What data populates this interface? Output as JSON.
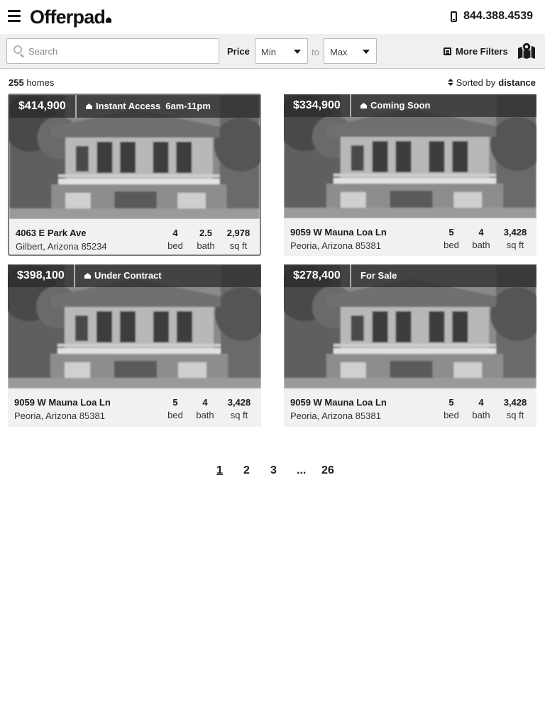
{
  "header": {
    "logo": "Offerpad",
    "phone": "844.388.4539"
  },
  "filters": {
    "search_placeholder": "Search",
    "price_label": "Price",
    "min_value": "Min",
    "to_label": "to",
    "max_value": "Max",
    "more_filters_label": "More Filters"
  },
  "results": {
    "count": "255",
    "count_suffix": "homes",
    "sorted_prefix": "Sorted by",
    "sorted_by": "distance"
  },
  "listings": [
    {
      "price": "$414,900",
      "status": "Instant Access",
      "hours": "6am-11pm",
      "street": "4063 E Park Ave",
      "city": "Gilbert, Arizona 85234",
      "beds": "4",
      "beds_label": "bed",
      "baths": "2.5",
      "baths_label": "bath",
      "sqft": "2,978",
      "sqft_label": "sq ft"
    },
    {
      "price": "$334,900",
      "status": "Coming Soon",
      "hours": "",
      "street": "9059 W Mauna Loa Ln",
      "city": "Peoria, Arizona 85381",
      "beds": "5",
      "beds_label": "bed",
      "baths": "4",
      "baths_label": "bath",
      "sqft": "3,428",
      "sqft_label": "sq ft"
    },
    {
      "price": "$398,100",
      "status": "Under Contract",
      "hours": "",
      "street": "9059 W Mauna Loa Ln",
      "city": "Peoria, Arizona 85381",
      "beds": "5",
      "beds_label": "bed",
      "baths": "4",
      "baths_label": "bath",
      "sqft": "3,428",
      "sqft_label": "sq ft"
    },
    {
      "price": "$278,400",
      "status": "For Sale",
      "hours": "",
      "street": "9059 W Mauna Loa Ln",
      "city": "Peoria, Arizona 85381",
      "beds": "5",
      "beds_label": "bed",
      "baths": "4",
      "baths_label": "bath",
      "sqft": "3,428",
      "sqft_label": "sq ft"
    }
  ],
  "pagination": {
    "pages": [
      "1",
      "2",
      "3",
      "...",
      "26"
    ],
    "current": "1"
  },
  "icons": {
    "menu": "hamburger-menu-icon",
    "phone": "phone-icon",
    "search": "search-icon",
    "filter": "filter-icon",
    "map": "map-icon",
    "sort": "sort-icon",
    "home": "home-icon"
  },
  "colors": {
    "price_bar": "#282828",
    "card_bg": "#f1f1f1",
    "filter_bar": "#f0f0f0"
  }
}
